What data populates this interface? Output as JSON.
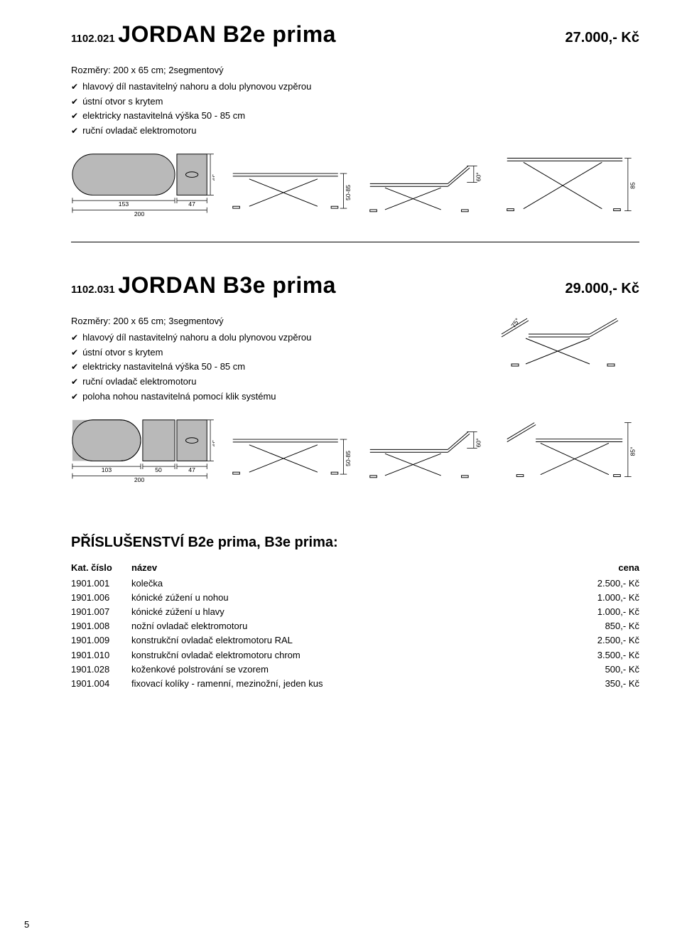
{
  "product1": {
    "sku": "1102.021",
    "name": "JORDAN B2e prima",
    "price": "27.000,- Kč",
    "dims": "Rozměry: 200 x 65 cm; 2segmentový",
    "features": [
      "hlavový díl nastavitelný nahoru a dolu plynovou vzpěrou",
      "ústní otvor s krytem",
      "elektricky nastavitelná výška 50 - 85 cm",
      "ruční ovladač elektromotoru"
    ],
    "top": {
      "seg1": "153",
      "seg2": "47",
      "total": "200",
      "w": "65"
    },
    "side": {
      "h": "50-85"
    },
    "side_up": {
      "angle": "60°"
    },
    "side_raised": {
      "h": "85"
    }
  },
  "product2": {
    "sku": "1102.031",
    "name": "JORDAN B3e prima",
    "price": "29.000,- Kč",
    "dims": "Rozměry: 200 x 65 cm; 3segmentový",
    "features": [
      "hlavový díl nastavitelný nahoru a dolu plynovou vzpěrou",
      "ústní otvor s krytem",
      "elektricky nastavitelná výška 50 - 85 cm",
      "ruční ovladač elektromotoru",
      "poloha nohou nastavitelná pomocí klik systému"
    ],
    "inline_angle": "75°",
    "top": {
      "seg1": "103",
      "seg2": "50",
      "seg3": "47",
      "total": "200",
      "w": "65"
    },
    "side": {
      "h": "50-85"
    },
    "side_up": {
      "angle": "60°"
    },
    "side_raised": {
      "h": "85°"
    }
  },
  "accessories": {
    "title": "PŘÍSLUŠENSTVÍ  B2e prima, B3e prima:",
    "header": {
      "id": "Kat. číslo",
      "name": "název",
      "price": "cena"
    },
    "rows": [
      {
        "id": "1901.001",
        "name": "kolečka",
        "price": "2.500,- Kč"
      },
      {
        "id": "1901.006",
        "name": "kónické zúžení u nohou",
        "price": "1.000,- Kč"
      },
      {
        "id": "1901.007",
        "name": "kónické zúžení u hlavy",
        "price": "1.000,- Kč"
      },
      {
        "id": "1901.008",
        "name": "nožní ovladač elektromotoru",
        "price": "850,- Kč"
      },
      {
        "id": "1901.009",
        "name": "konstrukční ovladač elektromotoru RAL",
        "price": "2.500,- Kč"
      },
      {
        "id": "1901.010",
        "name": "konstrukční ovladač elektromotoru chrom",
        "price": "3.500,- Kč"
      },
      {
        "id": "1901.028",
        "name": "koženkové polstrování se vzorem",
        "price": "500,- Kč"
      },
      {
        "id": "1901.004",
        "name": "fixovací kolíky - ramenní, mezinožní, jeden kus",
        "price": "350,- Kč"
      }
    ]
  },
  "page_num": "5",
  "colors": {
    "gray_fill": "#b9b9b9",
    "stroke": "#000000"
  }
}
